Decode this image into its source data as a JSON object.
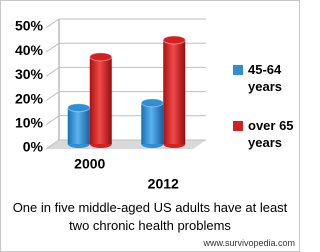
{
  "chart_data": {
    "type": "bar3d",
    "categories": [
      "2000",
      "2012"
    ],
    "series": [
      {
        "name": "45-64 years",
        "color": "#2e8fd6",
        "values": [
          15,
          17
        ]
      },
      {
        "name": "over 65 years",
        "color": "#d42020",
        "values": [
          36,
          43
        ]
      }
    ],
    "ylim": [
      0,
      50
    ],
    "yticks": [
      {
        "value": 0,
        "label": "0%"
      },
      {
        "value": 10,
        "label": "10%"
      },
      {
        "value": 20,
        "label": "20%"
      },
      {
        "value": 30,
        "label": "30%"
      },
      {
        "value": 40,
        "label": "40%"
      },
      {
        "value": 50,
        "label": "50%"
      }
    ],
    "grid": true,
    "caption": "One in five middle-aged US adults have at least two chronic health problems",
    "watermark": "www.survivopedia.com"
  }
}
